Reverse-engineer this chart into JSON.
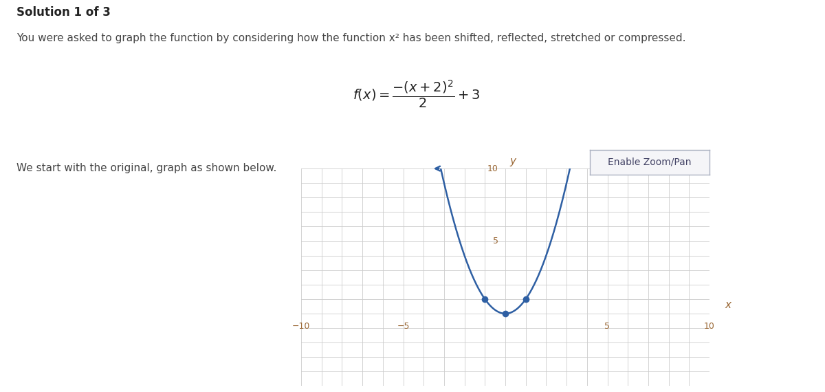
{
  "title_bold": "Solution 1 of 3",
  "description": "You were asked to graph the function by considering how the function x² has been shifted, reflected, stretched or compressed.",
  "subtitle": "We start with the original, graph as shown below.",
  "button_text": "Enable Zoom/Pan",
  "xlim": [
    -10,
    10
  ],
  "ylim": [
    -5,
    10
  ],
  "dot_points": [
    [
      -1,
      1
    ],
    [
      0,
      0
    ],
    [
      1,
      1
    ]
  ],
  "dot_color": "#2e5fa3",
  "curve_color": "#2e5fa3",
  "grid_color": "#cccccc",
  "axis_color": "#444444",
  "background_color": "#ffffff",
  "plot_bg_color": "#ffffff",
  "tick_color": "#996633",
  "label_color": "#996633",
  "text_dark": "#222222",
  "text_mid": "#444444"
}
